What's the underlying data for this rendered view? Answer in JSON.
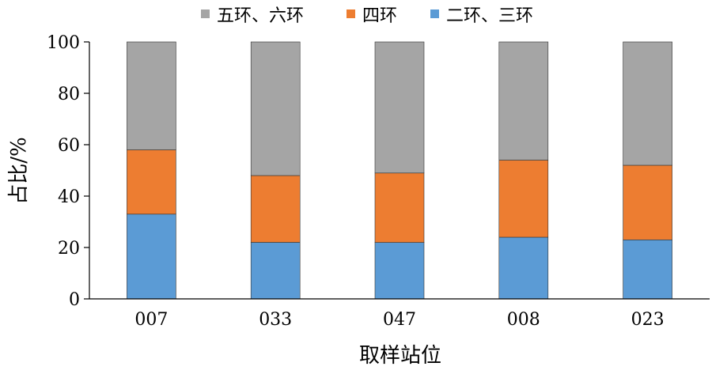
{
  "chart_data": {
    "type": "bar",
    "stacked": true,
    "categories": [
      "007",
      "033",
      "047",
      "008",
      "023"
    ],
    "series": [
      {
        "name": "二环、三环",
        "color": "#5b9bd5",
        "values": [
          33,
          22,
          22,
          24,
          23
        ]
      },
      {
        "name": "四环",
        "color": "#ed7d31",
        "values": [
          25,
          26,
          27,
          30,
          29
        ]
      },
      {
        "name": "五环、六环",
        "color": "#a5a5a5",
        "values": [
          42,
          52,
          51,
          46,
          48
        ]
      }
    ],
    "legend_order": [
      "五环、六环",
      "四环",
      "二环、三环"
    ],
    "legend_position": "top",
    "xlabel": "取样站位",
    "ylabel": "占比/%",
    "ylim": [
      0,
      100
    ],
    "yticks": [
      0,
      20,
      40,
      60,
      80,
      100
    ],
    "grid": false
  }
}
